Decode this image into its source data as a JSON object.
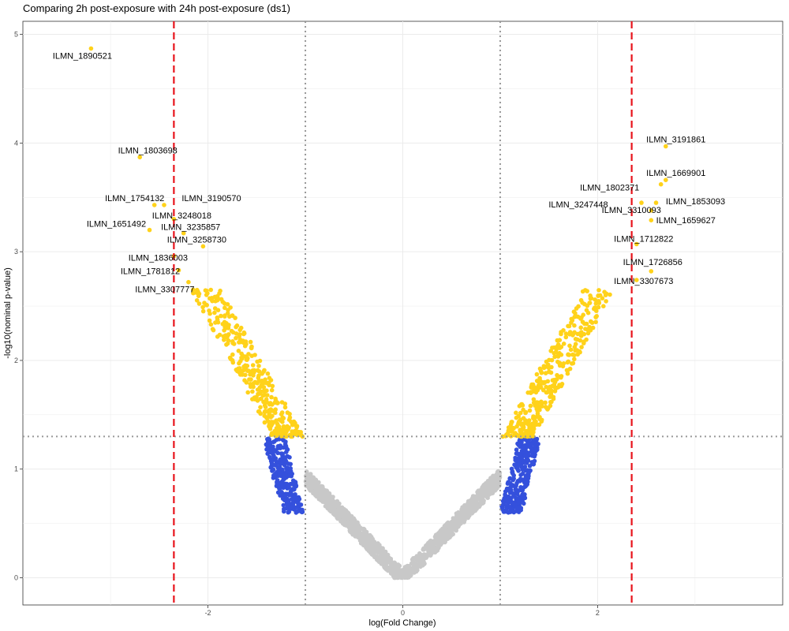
{
  "chart_data": {
    "type": "scatter",
    "title": "Comparing 2h post-exposure with 24h post-exposure (ds1)",
    "xlabel": "log(Fold Change)",
    "ylabel": "-log10(nominal p-value)",
    "xlim": [
      -3.9,
      3.9
    ],
    "ylim": [
      -0.25,
      5.12
    ],
    "x_ticks": [
      -2,
      0,
      2
    ],
    "y_ticks": [
      0,
      1,
      2,
      3,
      4,
      5
    ],
    "grid": true,
    "legend": "none",
    "colors": {
      "not_significant": "#c8c8c8",
      "large_fc_not_significant": "#3450dc",
      "significant": "#ffd21a",
      "fc_threshold_line": "#e8141c",
      "reference_line": "#999999"
    },
    "thresholds": {
      "fc_dashed": [
        -2.35,
        2.35
      ],
      "fc_dotted": [
        -1,
        1
      ],
      "pvalue_dotted": 1.3
    },
    "labeled_points": [
      {
        "label": "ILMN_1890521",
        "x": -3.2,
        "y": 4.87
      },
      {
        "label": "ILMN_1803698",
        "x": -2.7,
        "y": 3.87
      },
      {
        "label": "ILMN_1754132",
        "x": -2.55,
        "y": 3.43
      },
      {
        "label": "ILMN_3190570",
        "x": -2.45,
        "y": 3.43
      },
      {
        "label": "ILMN_3248018",
        "x": -2.35,
        "y": 3.3
      },
      {
        "label": "ILMN_1651492",
        "x": -2.6,
        "y": 3.2
      },
      {
        "label": "ILMN_3235857",
        "x": -2.25,
        "y": 3.17
      },
      {
        "label": "ILMN_3258730",
        "x": -2.05,
        "y": 3.05
      },
      {
        "label": "ILMN_1836003",
        "x": -2.35,
        "y": 2.96
      },
      {
        "label": "ILMN_1781812",
        "x": -2.3,
        "y": 2.83
      },
      {
        "label": "ILMN_3307777",
        "x": -2.2,
        "y": 2.72
      },
      {
        "label": "ILMN_3191861",
        "x": 2.7,
        "y": 3.97
      },
      {
        "label": "ILMN_1669901",
        "x": 2.7,
        "y": 3.66
      },
      {
        "label": "ILMN_1802371",
        "x": 2.65,
        "y": 3.62
      },
      {
        "label": "ILMN_3247448",
        "x": 2.45,
        "y": 3.45
      },
      {
        "label": "ILMN_1853093",
        "x": 2.6,
        "y": 3.45
      },
      {
        "label": "ILMN_3310093",
        "x": 2.55,
        "y": 3.38
      },
      {
        "label": "ILMN_1659627",
        "x": 2.55,
        "y": 3.29
      },
      {
        "label": "ILMN_1712822",
        "x": 2.4,
        "y": 3.07
      },
      {
        "label": "ILMN_1726856",
        "x": 2.55,
        "y": 2.82
      },
      {
        "label": "ILMN_3307673",
        "x": 2.4,
        "y": 2.74
      }
    ]
  }
}
